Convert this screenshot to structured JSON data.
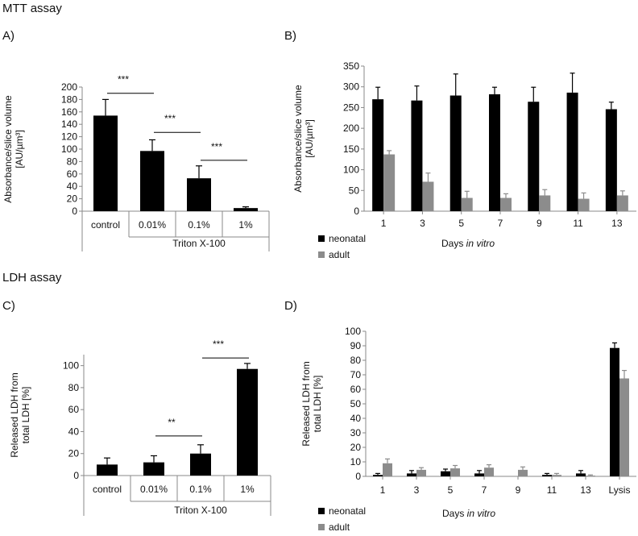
{
  "sections": {
    "mtt": "MTT assay",
    "ldh": "LDH assay"
  },
  "chart_data": [
    {
      "id": "A",
      "panel_label": "A)",
      "type": "bar",
      "categories": [
        "control",
        "0.01%",
        "0.1%",
        "1%"
      ],
      "values": [
        154,
        97,
        53,
        5
      ],
      "errors": [
        26,
        18,
        20,
        2
      ],
      "group_label": "Triton X-100",
      "ylabel_lines": [
        "Absorbance/slice volume",
        "[AU/µm³]"
      ],
      "ylim": [
        0,
        200
      ],
      "yticks": [
        0,
        20,
        40,
        60,
        80,
        100,
        120,
        140,
        160,
        180,
        200
      ],
      "color": "#000000",
      "significance": [
        {
          "from": 0,
          "to": 1,
          "label": "***",
          "y": 190
        },
        {
          "from": 1,
          "to": 2,
          "label": "***",
          "y": 127
        },
        {
          "from": 2,
          "to": 3,
          "label": "***",
          "y": 82
        }
      ]
    },
    {
      "id": "B",
      "panel_label": "B)",
      "type": "bar",
      "categories": [
        "1",
        "3",
        "5",
        "7",
        "9",
        "11",
        "13"
      ],
      "series": [
        {
          "name": "neonatal",
          "values": [
            270,
            267,
            279,
            282,
            264,
            286,
            246
          ],
          "errors": [
            29,
            35,
            52,
            17,
            35,
            47,
            17
          ],
          "color": "#000000"
        },
        {
          "name": "adult",
          "values": [
            137,
            71,
            32,
            32,
            38,
            30,
            38
          ],
          "errors": [
            9,
            21,
            16,
            10,
            14,
            14,
            11
          ],
          "color": "#8c8c8c"
        }
      ],
      "xlabel_prefix": "Days ",
      "xlabel_italic": "in vitro",
      "ylabel_lines": [
        "Absorbance/slice volume",
        "[AU/µm³]"
      ],
      "ylim": [
        0,
        350
      ],
      "yticks": [
        0,
        50,
        100,
        150,
        200,
        250,
        300,
        350
      ],
      "legend_position": "bottom-left"
    },
    {
      "id": "C",
      "panel_label": "C)",
      "type": "bar",
      "categories": [
        "control",
        "0.01%",
        "0.1%",
        "1%"
      ],
      "values": [
        10,
        12,
        20,
        97
      ],
      "errors": [
        6,
        6,
        8,
        5
      ],
      "group_label": "Triton X-100",
      "ylabel_lines": [
        "Released LDH from",
        "total LDH [%]"
      ],
      "ylim": [
        0,
        110
      ],
      "yticks": [
        0,
        20,
        40,
        60,
        80,
        100
      ],
      "color": "#000000",
      "significance": [
        {
          "from": 1,
          "to": 2,
          "label": "**",
          "y": 36
        },
        {
          "from": 2,
          "to": 3,
          "label": "***",
          "y": 107
        }
      ]
    },
    {
      "id": "D",
      "panel_label": "D)",
      "type": "bar",
      "categories": [
        "1",
        "3",
        "5",
        "7",
        "9",
        "11",
        "13",
        "Lysis"
      ],
      "series": [
        {
          "name": "neonatal",
          "values": [
            1,
            2,
            3.5,
            2,
            0,
            1,
            2,
            88.5
          ],
          "errors": [
            1,
            2,
            1.5,
            2,
            0,
            1,
            2,
            3.5
          ],
          "color": "#000000"
        },
        {
          "name": "adult",
          "values": [
            9,
            4.5,
            5.5,
            6,
            4.5,
            1,
            0.5,
            67.5
          ],
          "errors": [
            3,
            1.5,
            2,
            2,
            2,
            1,
            0.5,
            5.5
          ],
          "color": "#8c8c8c"
        }
      ],
      "xlabel_prefix": "Days ",
      "xlabel_italic": "in vitro",
      "ylabel_lines": [
        "Released LDH from",
        "total LDH [%]"
      ],
      "ylim": [
        0,
        100
      ],
      "yticks": [
        0,
        10,
        20,
        30,
        40,
        50,
        60,
        70,
        80,
        90,
        100
      ],
      "legend_position": "bottom-left"
    }
  ]
}
